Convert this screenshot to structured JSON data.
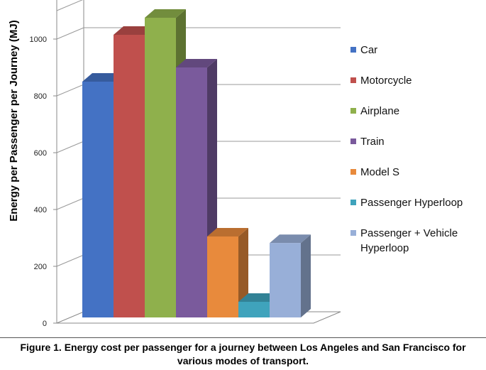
{
  "chart_data": {
    "type": "bar",
    "ylabel": "Energy per Passenger per Journey (MJ)",
    "ylim": [
      0,
      1100
    ],
    "yticks": [
      0,
      200,
      400,
      600,
      800,
      1000
    ],
    "grid": true,
    "legend_position": "right",
    "series": [
      {
        "name": "Car",
        "value": 830,
        "color": "#4472C4"
      },
      {
        "name": "Motorcycle",
        "value": 995,
        "color": "#C0504D"
      },
      {
        "name": "Airplane",
        "value": 1055,
        "color": "#8FB04C"
      },
      {
        "name": "Train",
        "value": 880,
        "color": "#7A5A9C"
      },
      {
        "name": "Model S",
        "value": 285,
        "color": "#E88A3C"
      },
      {
        "name": "Passenger Hyperloop",
        "value": 55,
        "color": "#3FA3BC"
      },
      {
        "name": "Passenger + Vehicle Hyperloop",
        "value": 262,
        "color": "#98AFD8"
      }
    ]
  },
  "caption": {
    "line1": "Figure 1. Energy cost per passenger for a journey between Los Angeles and San Francisco for",
    "line2": "various modes of transport."
  }
}
